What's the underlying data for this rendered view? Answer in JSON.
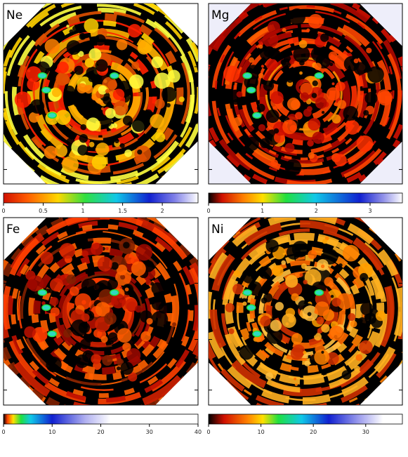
{
  "panels": [
    {
      "label": "Ne",
      "colorbar": {
        "range": [
          0,
          2.45
        ],
        "ticks": [
          0,
          0.5,
          1,
          1.5,
          2
        ]
      }
    },
    {
      "label": "Mg",
      "colorbar": {
        "range": [
          0,
          3.6
        ],
        "ticks": [
          0,
          1,
          2,
          3
        ]
      }
    },
    {
      "label": "Fe",
      "colorbar": {
        "range": [
          0,
          40
        ],
        "ticks": [
          0,
          10,
          20,
          30,
          40
        ]
      }
    },
    {
      "label": "Ni",
      "colorbar": {
        "range": [
          0,
          37
        ],
        "ticks": [
          0,
          10,
          20,
          30
        ]
      }
    }
  ]
}
